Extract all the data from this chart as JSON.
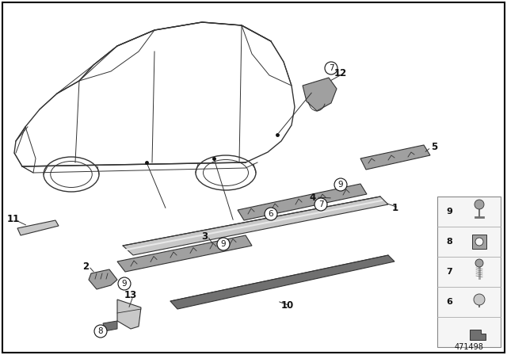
{
  "bg": "#ffffff",
  "lc": "#333333",
  "part_gray_light": "#c8c8c8",
  "part_gray_mid": "#a0a0a0",
  "part_gray_dark": "#707070",
  "part_gray_strip": "#b8b8b8",
  "diagram_number": "471498",
  "figsize": [
    6.4,
    4.48
  ],
  "dpi": 100,
  "border_color": "#000000",
  "text_color": "#111111",
  "label_fontsize": 8.5,
  "small_fontsize": 7.5,
  "diag_num_fontsize": 7
}
